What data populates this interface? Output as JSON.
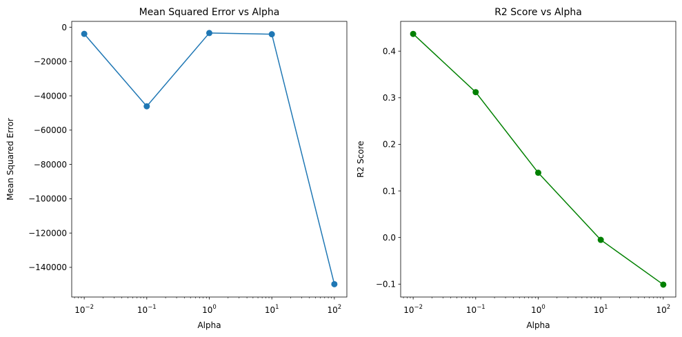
{
  "chart_data": [
    {
      "type": "line",
      "title": "Mean Squared Error vs Alpha",
      "xlabel": "Alpha",
      "ylabel": "Mean Squared Error",
      "xscale": "log",
      "x": [
        0.01,
        0.1,
        1,
        10,
        100
      ],
      "xticks": [
        {
          "value": 0.01,
          "base": "10",
          "exp": "−2"
        },
        {
          "value": 0.1,
          "base": "10",
          "exp": "−1"
        },
        {
          "value": 1,
          "base": "10",
          "exp": "0"
        },
        {
          "value": 10,
          "base": "10",
          "exp": "1"
        },
        {
          "value": 100,
          "base": "10",
          "exp": "2"
        }
      ],
      "yticks": [
        {
          "value": 0,
          "label": "0"
        },
        {
          "value": -20000,
          "label": "−20000"
        },
        {
          "value": -40000,
          "label": "−40000"
        },
        {
          "value": -60000,
          "label": "−60000"
        },
        {
          "value": -80000,
          "label": "−80000"
        },
        {
          "value": -100000,
          "label": "−100000"
        },
        {
          "value": -120000,
          "label": "−120000"
        },
        {
          "value": -140000,
          "label": "−140000"
        }
      ],
      "xlim": [
        0.00631,
        158.5
      ],
      "ylim": [
        -157300,
        3400
      ],
      "grid": false,
      "series": [
        {
          "color": "#1f77b4",
          "marker": "circle",
          "values": [
            -3900,
            -46100,
            -3400,
            -4100,
            -149800
          ]
        }
      ]
    },
    {
      "type": "line",
      "title": "R2 Score vs Alpha",
      "xlabel": "Alpha",
      "ylabel": "R2 Score",
      "xscale": "log",
      "x": [
        0.01,
        0.1,
        1,
        10,
        100
      ],
      "xticks": [
        {
          "value": 0.01,
          "base": "10",
          "exp": "−2"
        },
        {
          "value": 0.1,
          "base": "10",
          "exp": "−1"
        },
        {
          "value": 1,
          "base": "10",
          "exp": "0"
        },
        {
          "value": 10,
          "base": "10",
          "exp": "1"
        },
        {
          "value": 100,
          "base": "10",
          "exp": "2"
        }
      ],
      "yticks": [
        {
          "value": 0.4,
          "label": "0.4"
        },
        {
          "value": 0.3,
          "label": "0.3"
        },
        {
          "value": 0.2,
          "label": "0.2"
        },
        {
          "value": 0.1,
          "label": "0.1"
        },
        {
          "value": 0.0,
          "label": "0.0"
        },
        {
          "value": -0.1,
          "label": "−0.1"
        }
      ],
      "xlim": [
        0.00631,
        158.5
      ],
      "ylim": [
        -0.1277,
        0.4639
      ],
      "grid": false,
      "series": [
        {
          "color": "#008000",
          "marker": "circle",
          "values": [
            0.437,
            0.312,
            0.139,
            -0.005,
            -0.101
          ]
        }
      ]
    }
  ]
}
